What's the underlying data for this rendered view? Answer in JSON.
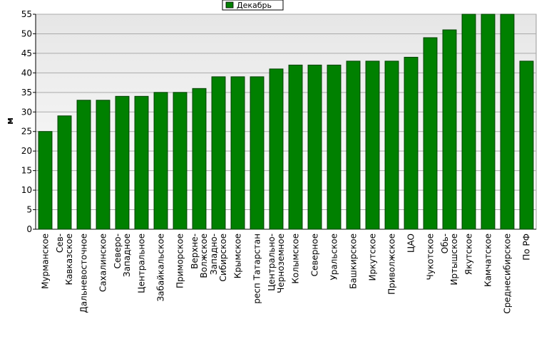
{
  "chart_data": {
    "type": "bar",
    "y_label": "м",
    "categories": [
      "Мурманское",
      "Сев-\nКавказское",
      "Дальневосточное",
      "Сахалинское",
      "Северо-\nЗападное",
      "Центральное",
      "Забайкальское",
      "Приморское",
      "Верхне-\nВолжское",
      "Западно-\nСибирское",
      "Крымское",
      "респ Татарстан",
      "Центрально-\nЧерноземное",
      "Колымское",
      "Северное",
      "Уральское",
      "Башкирское",
      "Иркутское",
      "Приволжское",
      "ЦАО",
      "Чукотское",
      "Обь-\nИртышское",
      "Якутское",
      "Камчатское",
      "Среднесибирское",
      "По РФ"
    ],
    "series": [
      {
        "name": "Декабрь",
        "color": "#008000",
        "values": [
          25,
          29,
          33,
          33,
          34,
          34,
          35,
          35,
          36,
          39,
          39,
          39,
          41,
          42,
          42,
          42,
          43,
          43,
          43,
          44,
          49,
          51,
          55,
          55,
          55,
          43
        ]
      }
    ],
    "ylim": [
      0,
      55
    ],
    "yticks": [
      0,
      5,
      10,
      15,
      20,
      25,
      30,
      35,
      40,
      45,
      50,
      55
    ],
    "grid": true,
    "legend": "top"
  }
}
